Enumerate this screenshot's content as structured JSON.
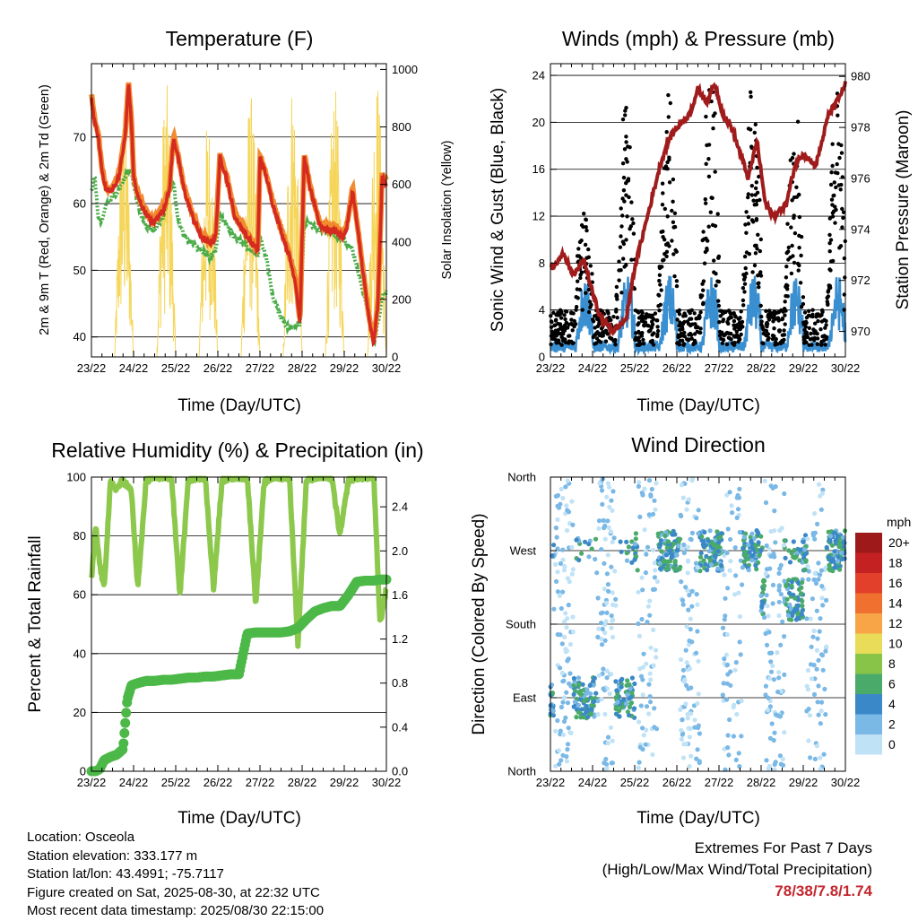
{
  "panels": {
    "temperature": {
      "title": "Temperature (F)",
      "ylabel": "2m & 9m T (Red, Orange) & 2m Td (Green)",
      "y2label": "Solar Insolation (Yellow)",
      "xlabel": "Time (Day/UTC)"
    },
    "winds": {
      "title": "Winds (mph) & Pressure (mb)",
      "ylabel": "Sonic Wind & Gust (Blue, Black)",
      "y2label": "Station Pressure (Maroon)",
      "xlabel": "Time (Day/UTC)"
    },
    "humidity": {
      "title": "Relative Humidity (%) & Precipitation (in)",
      "ylabel": "Percent & Total Rainfall",
      "xlabel": "Time (Day/UTC)"
    },
    "direction": {
      "title": "Wind Direction",
      "ylabel": "Direction (Colored By Speed)",
      "xlabel": "Time (Day/UTC)",
      "colorbar_unit": "mph"
    }
  },
  "footer": {
    "location": "Location: Osceola",
    "elevation": "Station elevation: 333.177 m",
    "latlon": "Station lat/lon: 43.4991; -75.7117",
    "created": "Figure created on Sat, 2025-08-30, at 22:32 UTC",
    "latest": "Most recent data timestamp: 2025/08/30 22:15:00",
    "extremes_title": "Extremes For Past 7 Days",
    "extremes_sub": "(High/Low/Max Wind/Total Precipitation)",
    "extremes_value": "78/38/7.8/1.74"
  },
  "colors": {
    "temp2m": "#d42a20",
    "temp9m": "#f28a2e",
    "dewpoint": "#4aac48",
    "solar": "#f5d55a",
    "wind": "#3a8fd0",
    "gust": "#000000",
    "pressure": "#a01c1c",
    "rh": "#8cc84b",
    "precip": "#4cb848",
    "accent": "#c4262e"
  },
  "chart_data": [
    {
      "type": "line",
      "title": "Temperature (F)",
      "xlabel": "Time (Day/UTC)",
      "ylabel": "2m & 9m T (Red, Orange) & 2m Td (Green)",
      "y2label": "Solar Insolation (Yellow)",
      "x_ticks": [
        "23/22",
        "24/22",
        "25/22",
        "26/22",
        "27/22",
        "28/22",
        "29/22",
        "30/22"
      ],
      "y_ticks": [
        40,
        50,
        60,
        70
      ],
      "y2_ticks": [
        0,
        200,
        400,
        600,
        800,
        1000
      ],
      "ylim": [
        37,
        81
      ],
      "y2lim": [
        0,
        1020
      ],
      "x": [
        0,
        0.08,
        0.16,
        0.25,
        0.35,
        0.5,
        0.65,
        0.8,
        0.88,
        0.95,
        1.0,
        1.1,
        1.25,
        1.45,
        1.7,
        1.85,
        1.95,
        2.05,
        2.2,
        2.4,
        2.6,
        2.8,
        2.95,
        3.05,
        3.2,
        3.4,
        3.6,
        3.8,
        3.95,
        4.0,
        4.15,
        4.3,
        4.5,
        4.7,
        4.85,
        4.95,
        5.05,
        5.2,
        5.4,
        5.6,
        5.8,
        5.95,
        6.05,
        6.2,
        6.4,
        6.6,
        6.7,
        6.8,
        6.9,
        7.0
      ],
      "series": [
        {
          "name": "2m T",
          "values": [
            76,
            72,
            70,
            65,
            62,
            62,
            64,
            70,
            78,
            72,
            64,
            61,
            59,
            57,
            59,
            62,
            70,
            67,
            62,
            58,
            55,
            54,
            55,
            67,
            64,
            58,
            56,
            54,
            53,
            67,
            64,
            60,
            56,
            52,
            48,
            42,
            67,
            62,
            57,
            56,
            56,
            55,
            56,
            62,
            52,
            42,
            39,
            45,
            64,
            63
          ]
        },
        {
          "name": "2m Td",
          "values": [
            62,
            64,
            58,
            57,
            60,
            61,
            62,
            64,
            65,
            65,
            63,
            60,
            57,
            56,
            58,
            62,
            63,
            58,
            55,
            54,
            53,
            52,
            53,
            58,
            57,
            55,
            54,
            53,
            52,
            55,
            52,
            46,
            43,
            41,
            42,
            42,
            57,
            57,
            56,
            56,
            55,
            55,
            54,
            53,
            48,
            43,
            39,
            42,
            46,
            47
          ]
        },
        {
          "name": "Solar",
          "axis": "y2",
          "daily_peak_w": [
            870,
            960,
            850,
            930,
            990,
            940,
            990
          ]
        }
      ]
    },
    {
      "type": "scatter",
      "title": "Winds (mph) & Pressure (mb)",
      "xlabel": "Time (Day/UTC)",
      "ylabel": "Sonic Wind & Gust (Blue, Black)",
      "y2label": "Station Pressure (Maroon)",
      "x_ticks": [
        "23/22",
        "24/22",
        "25/22",
        "26/22",
        "27/22",
        "28/22",
        "29/22",
        "30/22"
      ],
      "y_ticks": [
        0,
        4,
        8,
        12,
        16,
        20,
        24
      ],
      "y2_ticks": [
        970,
        972,
        974,
        976,
        978,
        980
      ],
      "ylim": [
        0,
        25
      ],
      "y2lim": [
        969,
        980.5
      ],
      "daily_gust_peak_mph": [
        11,
        20,
        21,
        23,
        22,
        20,
        21
      ],
      "pressure_x": [
        0,
        0.3,
        0.55,
        0.8,
        1.0,
        1.2,
        1.5,
        1.8,
        2.0,
        2.3,
        2.6,
        2.8,
        3.0,
        3.3,
        3.5,
        3.7,
        3.9,
        4.1,
        4.3,
        4.5,
        4.7,
        4.9,
        5.1,
        5.3,
        5.6,
        5.8,
        6.0,
        6.3,
        6.6,
        6.8,
        7.0
      ],
      "pressure_mb": [
        972.5,
        973.0,
        972.2,
        972.8,
        971.5,
        970.5,
        970.0,
        970.5,
        972.5,
        974.5,
        976.5,
        977.5,
        978.0,
        978.5,
        979.5,
        979.0,
        979.7,
        978.5,
        978.0,
        977.0,
        976.0,
        977.5,
        975.0,
        974.5,
        975.0,
        976.5,
        977.0,
        976.5,
        978.5,
        979.0,
        979.7
      ]
    },
    {
      "type": "line",
      "title": "Relative Humidity (%) & Precipitation (in)",
      "xlabel": "Time (Day/UTC)",
      "ylabel": "Percent & Total Rainfall",
      "x_ticks": [
        "23/22",
        "24/22",
        "25/22",
        "26/22",
        "27/22",
        "28/22",
        "29/22",
        "30/22"
      ],
      "y_ticks": [
        0,
        20,
        40,
        60,
        80,
        100
      ],
      "y2_ticks": [
        0.0,
        0.4,
        0.8,
        1.2,
        1.6,
        2.0,
        2.4
      ],
      "ylim": [
        0,
        100
      ],
      "y2lim": [
        0,
        2.67
      ],
      "x": [
        0,
        0.1,
        0.2,
        0.3,
        0.45,
        0.6,
        0.75,
        0.85,
        0.95,
        1.1,
        1.3,
        1.5,
        1.7,
        1.9,
        2.1,
        2.3,
        2.5,
        2.7,
        2.9,
        3.1,
        3.3,
        3.5,
        3.7,
        3.9,
        4.1,
        4.3,
        4.5,
        4.7,
        4.9,
        5.1,
        5.3,
        5.5,
        5.7,
        5.9,
        6.1,
        6.3,
        6.5,
        6.7,
        6.85,
        7.0
      ],
      "series": [
        {
          "name": "RH",
          "values": [
            65,
            83,
            70,
            62,
            98,
            96,
            99,
            97,
            95,
            62,
            99,
            100,
            100,
            100,
            60,
            99,
            100,
            100,
            62,
            99,
            100,
            100,
            100,
            57,
            98,
            100,
            100,
            100,
            43,
            99,
            100,
            100,
            100,
            80,
            99,
            100,
            100,
            100,
            50,
            62
          ]
        },
        {
          "name": "Precip",
          "axis": "y2",
          "values": [
            0.0,
            0.0,
            0.02,
            0.1,
            0.13,
            0.15,
            0.2,
            0.65,
            0.78,
            0.8,
            0.82,
            0.82,
            0.83,
            0.83,
            0.84,
            0.85,
            0.85,
            0.86,
            0.86,
            0.87,
            0.88,
            0.88,
            1.25,
            1.26,
            1.26,
            1.26,
            1.26,
            1.27,
            1.3,
            1.38,
            1.45,
            1.48,
            1.5,
            1.5,
            1.6,
            1.72,
            1.73,
            1.73,
            1.74,
            1.74
          ]
        }
      ]
    },
    {
      "type": "scatter",
      "title": "Wind Direction",
      "xlabel": "Time (Day/UTC)",
      "ylabel": "Direction (Colored By Speed)",
      "x_ticks": [
        "23/22",
        "24/22",
        "25/22",
        "26/22",
        "27/22",
        "28/22",
        "29/22",
        "30/22"
      ],
      "y_ticks": [
        "North",
        "East",
        "South",
        "West",
        "North"
      ],
      "ylim": [
        0,
        360
      ],
      "colorbar": {
        "unit": "mph",
        "levels": [
          "20+",
          "18",
          "16",
          "14",
          "12",
          "10",
          "8",
          "6",
          "4",
          "2",
          "0"
        ],
        "colors": [
          "#9e1a1a",
          "#c42222",
          "#e2402a",
          "#f07030",
          "#f8a548",
          "#e8dc58",
          "#88c448",
          "#4aaa6a",
          "#3a88c8",
          "#7ab8e6",
          "#c0e2f6"
        ]
      },
      "daily_dominant_direction_deg": [
        90,
        90,
        270,
        270,
        270,
        210,
        270
      ]
    }
  ]
}
